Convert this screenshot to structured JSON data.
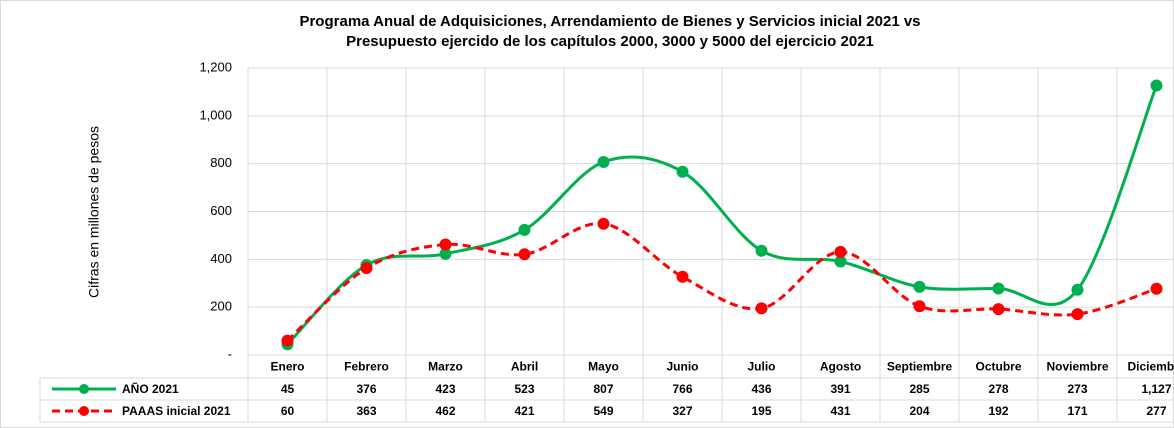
{
  "chart_data": {
    "type": "line",
    "title": "Programa Anual de Adquisiciones, Arrendamiento de Bienes y Servicios inicial 2021 vs",
    "subtitle": "Presupuesto ejercido de los capítulos 2000, 3000 y 5000 del ejercicio 2021",
    "y_label": "Cifras en millones de pesos",
    "categories": [
      "Enero",
      "Febrero",
      "Marzo",
      "Abril",
      "Mayo",
      "Junio",
      "Julio",
      "Agosto",
      "Septiembre",
      "Octubre",
      "Noviembre",
      "Diciembre"
    ],
    "series": [
      {
        "name": "AÑO 2021",
        "color": "#00b050",
        "dashed": false,
        "values": [
          45,
          376,
          423,
          523,
          807,
          766,
          436,
          391,
          285,
          278,
          273,
          1127
        ],
        "value_labels": [
          "45",
          "376",
          "423",
          "523",
          "807",
          "766",
          "436",
          "391",
          "285",
          "278",
          "273",
          "1,127"
        ]
      },
      {
        "name": "PAAAS inicial 2021",
        "color": "#ff0000",
        "dashed": true,
        "values": [
          60,
          363,
          462,
          421,
          549,
          327,
          195,
          431,
          204,
          192,
          171,
          277
        ],
        "value_labels": [
          "60",
          "363",
          "462",
          "421",
          "549",
          "327",
          "195",
          "431",
          "204",
          "192",
          "171",
          "277"
        ]
      }
    ],
    "smooth": true,
    "ylim": [
      0,
      1200
    ],
    "yticks": [
      {
        "value": 0,
        "label": "-"
      },
      200,
      400,
      600,
      800,
      {
        "value": 1000,
        "label": "1,000"
      },
      {
        "value": 1200,
        "label": "1,200"
      }
    ],
    "grid": true
  }
}
